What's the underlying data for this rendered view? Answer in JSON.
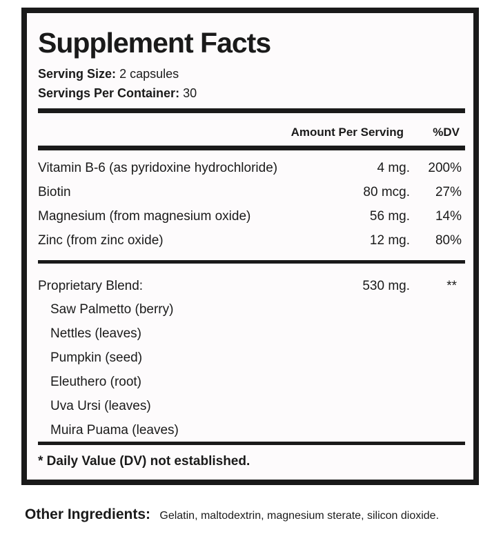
{
  "title": "Supplement Facts",
  "serving_size": {
    "label": "Serving Size:",
    "value": "2 capsules"
  },
  "servings_per_container": {
    "label": "Servings Per Container:",
    "value": "30"
  },
  "columns": {
    "amount": "Amount Per Serving",
    "dv": "%DV"
  },
  "nutrients": [
    {
      "name": "Vitamin B-6 (as pyridoxine hydrochloride)",
      "amount": "4 mg.",
      "dv": "200%"
    },
    {
      "name": "Biotin",
      "amount": "80 mcg.",
      "dv": "27%"
    },
    {
      "name": "Magnesium (from magnesium oxide)",
      "amount": "56 mg.",
      "dv": "14%"
    },
    {
      "name": "Zinc (from zinc oxide)",
      "amount": "12 mg.",
      "dv": "80%"
    }
  ],
  "blend": {
    "name": "Proprietary Blend:",
    "amount": "530 mg.",
    "dv": "**",
    "ingredients": [
      "Saw Palmetto (berry)",
      "Nettles (leaves)",
      "Pumpkin (seed)",
      "Eleuthero (root)",
      "Uva Ursi (leaves)",
      "Muira Puama (leaves)"
    ]
  },
  "footnote": "* Daily Value (DV) not established.",
  "other_ingredients": {
    "label": "Other Ingredients:",
    "value": "Gelatin, maltodextrin, magnesium sterate, silicon dioxide."
  }
}
